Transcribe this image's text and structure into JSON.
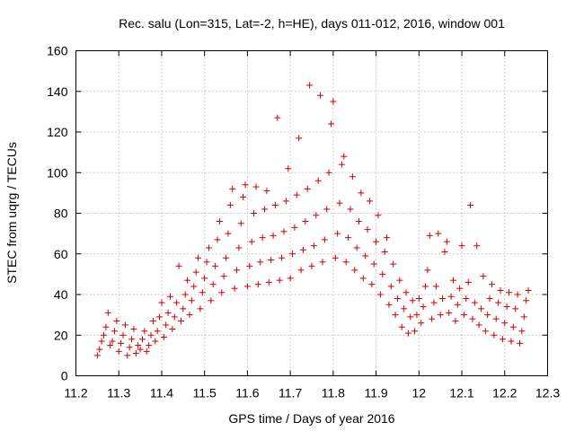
{
  "chart_data": {
    "type": "scatter",
    "title": "Rec. salu (Lon=315, Lat=-2, h=HE), days 011-012, 2016, window 001",
    "xlabel": "GPS time / Days of year 2016",
    "ylabel": "STEC from uqrg / TECUs",
    "xlim": [
      11.2,
      12.3
    ],
    "ylim": [
      0,
      160
    ],
    "x_ticks": [
      11.2,
      11.3,
      11.4,
      11.5,
      11.6,
      11.7,
      11.8,
      11.9,
      12,
      12.1,
      12.2,
      12.3
    ],
    "x_tick_labels": [
      "11.2",
      "11.3",
      "11.4",
      "11.5",
      "11.6",
      "11.7",
      "11.8",
      "11.9",
      "12",
      "12.1",
      "12.2",
      "12.3"
    ],
    "y_ticks": [
      0,
      20,
      40,
      60,
      80,
      100,
      120,
      140,
      160
    ],
    "y_tick_labels": [
      "0",
      "20",
      "40",
      "60",
      "80",
      "100",
      "120",
      "140",
      "160"
    ],
    "grid": true,
    "marker": "+",
    "color": "#cc0000",
    "series": [
      {
        "points": [
          [
            11.25,
            10
          ],
          [
            11.255,
            13
          ],
          [
            11.26,
            17
          ],
          [
            11.265,
            20
          ],
          [
            11.27,
            24
          ],
          [
            11.275,
            31
          ],
          [
            11.28,
            15
          ],
          [
            11.285,
            17
          ],
          [
            11.29,
            22
          ],
          [
            11.295,
            27
          ],
          [
            11.3,
            12
          ],
          [
            11.305,
            16
          ],
          [
            11.31,
            20
          ],
          [
            11.315,
            25
          ],
          [
            11.32,
            10
          ],
          [
            11.325,
            14
          ],
          [
            11.33,
            18
          ],
          [
            11.335,
            23
          ],
          [
            11.34,
            11
          ],
          [
            11.345,
            15
          ],
          [
            11.35,
            13
          ],
          [
            11.355,
            18
          ],
          [
            11.36,
            22
          ],
          [
            11.365,
            12
          ],
          [
            11.37,
            15
          ],
          [
            11.375,
            20
          ],
          [
            11.38,
            27
          ],
          [
            11.385,
            17
          ],
          [
            11.39,
            22
          ],
          [
            11.395,
            29
          ],
          [
            11.4,
            36
          ],
          [
            11.405,
            19
          ],
          [
            11.41,
            25
          ],
          [
            11.415,
            31
          ],
          [
            11.42,
            39
          ],
          [
            11.425,
            23
          ],
          [
            11.43,
            29
          ],
          [
            11.435,
            36
          ],
          [
            11.44,
            54
          ],
          [
            11.445,
            27
          ],
          [
            11.45,
            33
          ],
          [
            11.455,
            40
          ],
          [
            11.46,
            47
          ],
          [
            11.465,
            30
          ],
          [
            11.47,
            37
          ],
          [
            11.475,
            44
          ],
          [
            11.48,
            51
          ],
          [
            11.485,
            58
          ],
          [
            11.49,
            33
          ],
          [
            11.495,
            41
          ],
          [
            11.5,
            48
          ],
          [
            11.505,
            56
          ],
          [
            11.51,
            63
          ],
          [
            11.515,
            37
          ],
          [
            11.52,
            45
          ],
          [
            11.525,
            54
          ],
          [
            11.53,
            67
          ],
          [
            11.535,
            76
          ],
          [
            11.54,
            41
          ],
          [
            11.545,
            49
          ],
          [
            11.55,
            58
          ],
          [
            11.555,
            70
          ],
          [
            11.56,
            84
          ],
          [
            11.565,
            92
          ],
          [
            11.57,
            43
          ],
          [
            11.575,
            52
          ],
          [
            11.58,
            63
          ],
          [
            11.585,
            75
          ],
          [
            11.59,
            88
          ],
          [
            11.595,
            94
          ],
          [
            11.6,
            44
          ],
          [
            11.605,
            54
          ],
          [
            11.61,
            66
          ],
          [
            11.615,
            80
          ],
          [
            11.62,
            93
          ],
          [
            11.625,
            45
          ],
          [
            11.63,
            56
          ],
          [
            11.635,
            68
          ],
          [
            11.64,
            82
          ],
          [
            11.645,
            91
          ],
          [
            11.65,
            46
          ],
          [
            11.655,
            57
          ],
          [
            11.66,
            69
          ],
          [
            11.665,
            84
          ],
          [
            11.67,
            127
          ],
          [
            11.675,
            47
          ],
          [
            11.68,
            58
          ],
          [
            11.685,
            71
          ],
          [
            11.69,
            86
          ],
          [
            11.695,
            102
          ],
          [
            11.7,
            48
          ],
          [
            11.705,
            60
          ],
          [
            11.71,
            73
          ],
          [
            11.715,
            89
          ],
          [
            11.72,
            117
          ],
          [
            11.725,
            52
          ],
          [
            11.73,
            62
          ],
          [
            11.735,
            76
          ],
          [
            11.74,
            92
          ],
          [
            11.745,
            143
          ],
          [
            11.75,
            54
          ],
          [
            11.755,
            64
          ],
          [
            11.76,
            79
          ],
          [
            11.765,
            96
          ],
          [
            11.77,
            138
          ],
          [
            11.775,
            56
          ],
          [
            11.78,
            67
          ],
          [
            11.785,
            82
          ],
          [
            11.79,
            100
          ],
          [
            11.795,
            124
          ],
          [
            11.8,
            135
          ],
          [
            11.805,
            58
          ],
          [
            11.81,
            70
          ],
          [
            11.815,
            85
          ],
          [
            11.82,
            104
          ],
          [
            11.825,
            108
          ],
          [
            11.83,
            56
          ],
          [
            11.835,
            68
          ],
          [
            11.84,
            82
          ],
          [
            11.845,
            98
          ],
          [
            11.85,
            52
          ],
          [
            11.855,
            63
          ],
          [
            11.86,
            76
          ],
          [
            11.865,
            90
          ],
          [
            11.87,
            48
          ],
          [
            11.875,
            59
          ],
          [
            11.88,
            72
          ],
          [
            11.885,
            86
          ],
          [
            11.89,
            45
          ],
          [
            11.895,
            55
          ],
          [
            11.9,
            66
          ],
          [
            11.905,
            79
          ],
          [
            11.91,
            40
          ],
          [
            11.915,
            50
          ],
          [
            11.92,
            61
          ],
          [
            11.925,
            68
          ],
          [
            11.93,
            35
          ],
          [
            11.935,
            44
          ],
          [
            11.94,
            55
          ],
          [
            11.945,
            30
          ],
          [
            11.95,
            38
          ],
          [
            11.955,
            47
          ],
          [
            11.96,
            24
          ],
          [
            11.965,
            33
          ],
          [
            11.97,
            41
          ],
          [
            11.975,
            21
          ],
          [
            11.98,
            29
          ],
          [
            11.985,
            37
          ],
          [
            11.99,
            22
          ],
          [
            11.995,
            30
          ],
          [
            12.0,
            38
          ],
          [
            12.005,
            26
          ],
          [
            12.01,
            34
          ],
          [
            12.015,
            44
          ],
          [
            12.02,
            52
          ],
          [
            12.025,
            69
          ],
          [
            12.03,
            28
          ],
          [
            12.035,
            36
          ],
          [
            12.04,
            44
          ],
          [
            12.045,
            70
          ],
          [
            12.05,
            30
          ],
          [
            12.055,
            38
          ],
          [
            12.06,
            61
          ],
          [
            12.065,
            66
          ],
          [
            12.07,
            31
          ],
          [
            12.075,
            39
          ],
          [
            12.08,
            47
          ],
          [
            12.085,
            27
          ],
          [
            12.09,
            35
          ],
          [
            12.095,
            43
          ],
          [
            12.1,
            64
          ],
          [
            12.105,
            30
          ],
          [
            12.11,
            38
          ],
          [
            12.115,
            46
          ],
          [
            12.12,
            84
          ],
          [
            12.125,
            28
          ],
          [
            12.13,
            36
          ],
          [
            12.135,
            64
          ],
          [
            12.14,
            25
          ],
          [
            12.145,
            33
          ],
          [
            12.15,
            49
          ],
          [
            12.155,
            22
          ],
          [
            12.16,
            30
          ],
          [
            12.165,
            38
          ],
          [
            12.17,
            45
          ],
          [
            12.175,
            20
          ],
          [
            12.18,
            28
          ],
          [
            12.185,
            36
          ],
          [
            12.19,
            42
          ],
          [
            12.195,
            18
          ],
          [
            12.2,
            26
          ],
          [
            12.205,
            34
          ],
          [
            12.21,
            41
          ],
          [
            12.215,
            17
          ],
          [
            12.22,
            24
          ],
          [
            12.225,
            33
          ],
          [
            12.23,
            40
          ],
          [
            12.235,
            16
          ],
          [
            12.24,
            22
          ],
          [
            12.245,
            29
          ],
          [
            12.25,
            37
          ],
          [
            12.255,
            42
          ]
        ]
      }
    ]
  }
}
